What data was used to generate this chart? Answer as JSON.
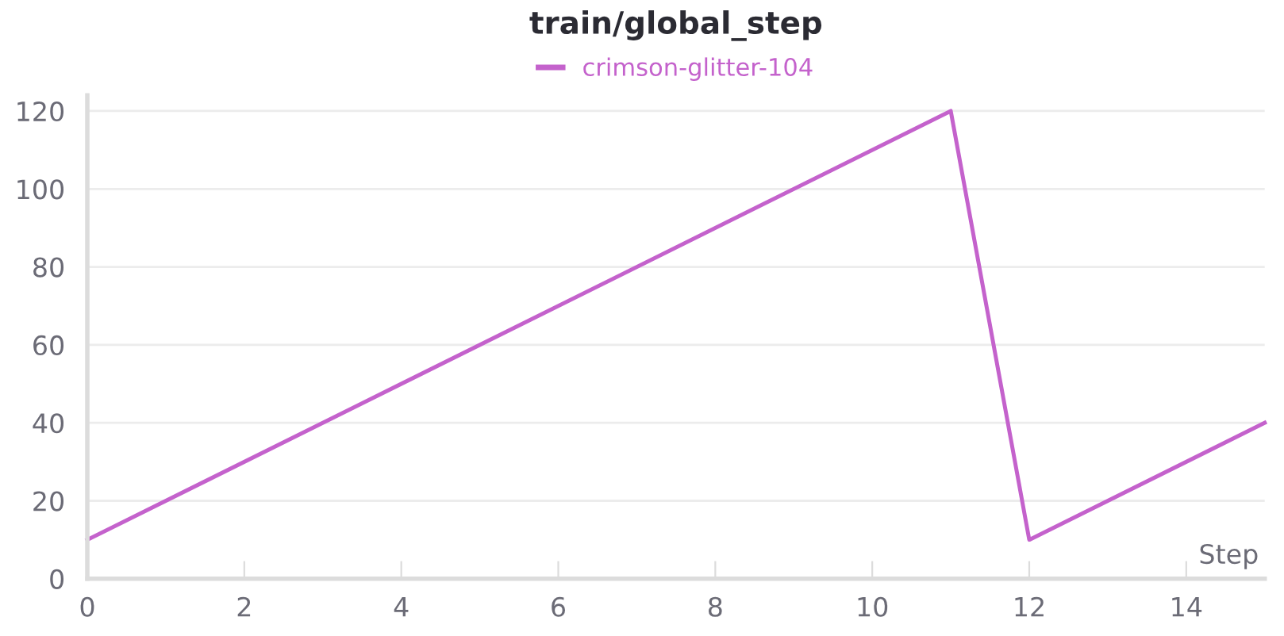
{
  "chart_data": {
    "type": "line",
    "title": "train/global_step",
    "xlabel": "Step",
    "x": [
      0,
      11,
      12,
      15
    ],
    "series": [
      {
        "name": "crimson-glitter-104",
        "color": "#c462cc",
        "values": [
          10,
          120,
          10,
          40
        ]
      }
    ],
    "xlim": [
      0,
      15
    ],
    "xticks": [
      0,
      2,
      4,
      6,
      8,
      10,
      12,
      14
    ],
    "ylim": [
      0,
      124
    ],
    "yticks": [
      0,
      20,
      40,
      60,
      80,
      100,
      120
    ],
    "grid": "y",
    "legend": "top"
  }
}
